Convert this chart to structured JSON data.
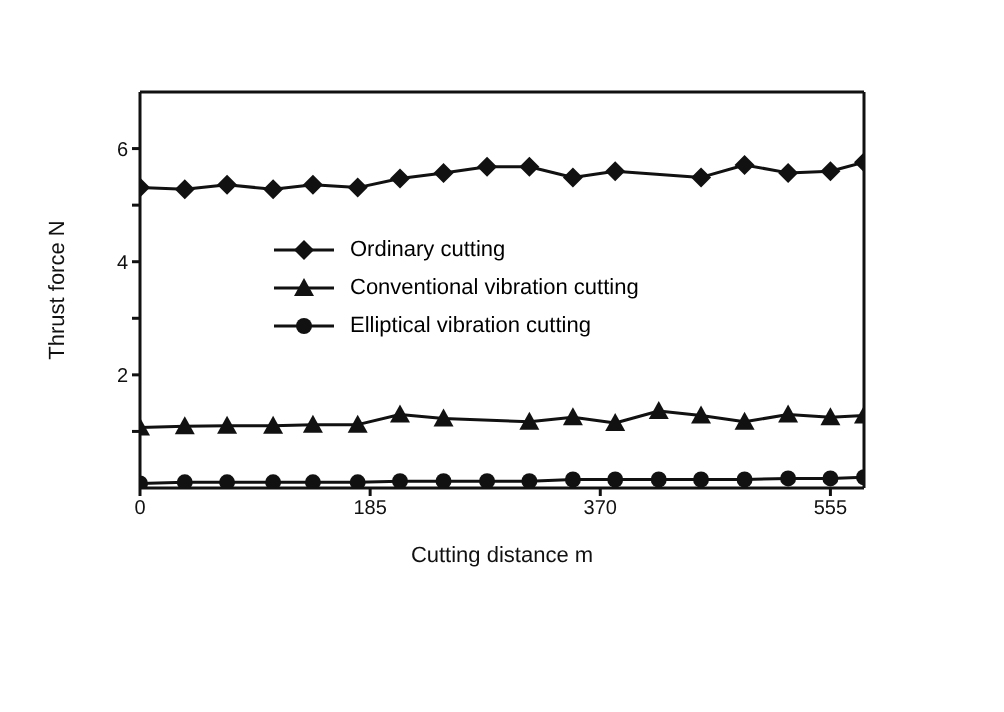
{
  "chart_data": {
    "type": "line",
    "xlabel": "Cutting distance m",
    "ylabel": "Thrust force N",
    "x": [
      0,
      36,
      70,
      107,
      139,
      175,
      209,
      244,
      279,
      313,
      348,
      382,
      417,
      451,
      486,
      521,
      555,
      582
    ],
    "xlim": [
      0,
      582
    ],
    "xticks": [
      0,
      185,
      370,
      555
    ],
    "ylim": [
      0,
      7
    ],
    "yticks": [
      {
        "value": 1,
        "label": null
      },
      2,
      {
        "value": 3,
        "label": null
      },
      4,
      {
        "value": 5,
        "label": null
      },
      6
    ],
    "grid": false,
    "legend": "top left",
    "line_style": "solid",
    "series": [
      {
        "name": "Ordinary cutting",
        "color": "#111111",
        "marker": "diamond",
        "values": [
          5.31,
          5.28,
          5.36,
          5.28,
          5.36,
          5.31,
          5.47,
          5.57,
          5.68,
          5.68,
          5.49,
          5.6,
          null,
          5.49,
          5.71,
          5.57,
          5.6,
          5.76
        ]
      },
      {
        "name": "Conventional vibration cutting",
        "color": "#111111",
        "marker": "triangle",
        "values": [
          1.07,
          1.09,
          1.1,
          1.1,
          1.12,
          1.12,
          1.3,
          1.23,
          null,
          1.17,
          1.25,
          1.15,
          1.36,
          1.28,
          1.17,
          1.3,
          1.25,
          1.28
        ]
      },
      {
        "name": "Elliptical vibration cutting",
        "color": "#111111",
        "marker": "circle",
        "values": [
          0.08,
          0.1,
          0.1,
          0.1,
          0.1,
          0.1,
          0.12,
          0.12,
          0.12,
          0.12,
          0.15,
          0.15,
          0.15,
          0.15,
          0.15,
          0.17,
          0.17,
          0.19
        ]
      }
    ]
  }
}
